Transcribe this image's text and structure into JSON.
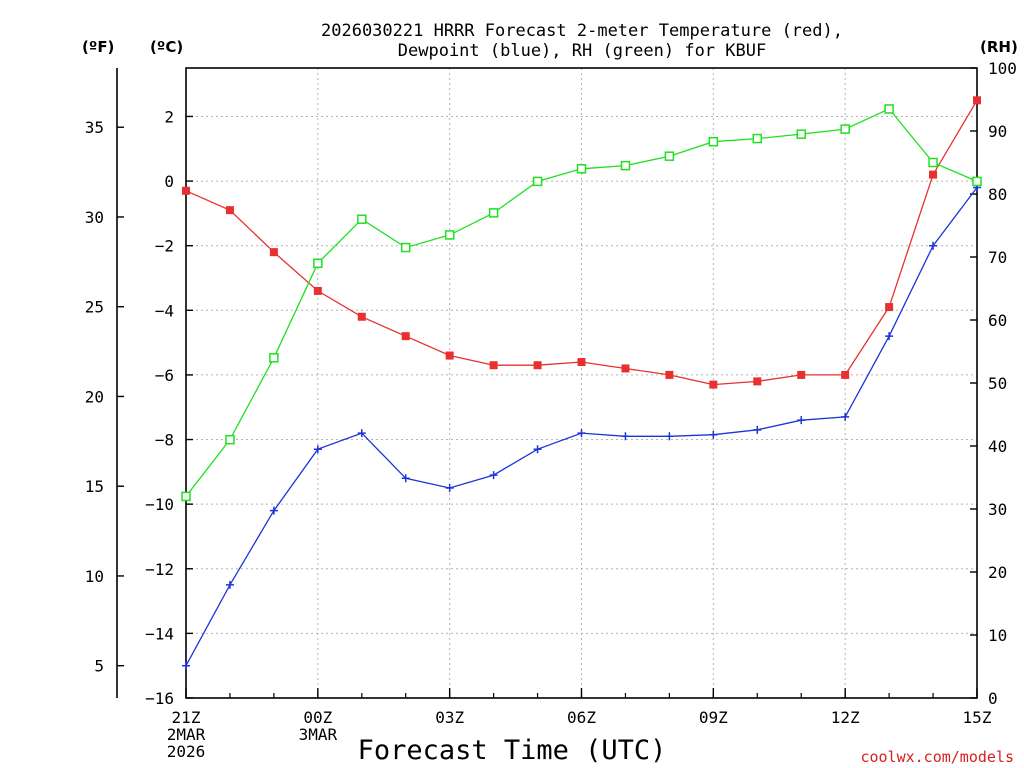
{
  "chart_data": {
    "type": "line",
    "title": [
      "2026030221 HRRR Forecast 2-meter Temperature (red),",
      "Dewpoint (blue), RH (green) for KBUF"
    ],
    "xlabel": "Forecast Time (UTC)",
    "unit_labels": {
      "fahrenheit": "(ºF)",
      "celsius": "(ºC)",
      "rh": "(RH)"
    },
    "x_hours": [
      0,
      1,
      2,
      3,
      4,
      5,
      6,
      7,
      8,
      9,
      10,
      11,
      12,
      13,
      14,
      15,
      16,
      17,
      18
    ],
    "x_ticks": [
      {
        "hour": 0,
        "lines": [
          "21Z",
          "2MAR",
          "2026"
        ]
      },
      {
        "hour": 3,
        "lines": [
          "00Z",
          "3MAR"
        ]
      },
      {
        "hour": 6,
        "lines": [
          "03Z"
        ]
      },
      {
        "hour": 9,
        "lines": [
          "06Z"
        ]
      },
      {
        "hour": 12,
        "lines": [
          "09Z"
        ]
      },
      {
        "hour": 15,
        "lines": [
          "12Z"
        ]
      },
      {
        "hour": 18,
        "lines": [
          "15Z"
        ]
      }
    ],
    "y_celsius": {
      "range": [
        -16,
        3.5
      ],
      "ticks": [
        -16,
        -14,
        -12,
        -10,
        -8,
        -6,
        -4,
        -2,
        0,
        2
      ]
    },
    "y_fahrenheit": {
      "range": [
        3.2,
        38.3
      ],
      "ticks": [
        5,
        10,
        15,
        20,
        25,
        30,
        35
      ]
    },
    "y_rh": {
      "range": [
        0,
        100
      ],
      "ticks": [
        0,
        10,
        20,
        30,
        40,
        50,
        60,
        70,
        80,
        90,
        100
      ]
    },
    "series": [
      {
        "name": "Temperature",
        "axis": "celsius",
        "color": "#e83030",
        "marker": "filled-square",
        "values": [
          -0.3,
          -0.9,
          -2.2,
          -3.4,
          -4.2,
          -4.8,
          -5.4,
          -5.7,
          -5.7,
          -5.6,
          -5.8,
          -6.0,
          -6.3,
          -6.2,
          -6.0,
          -6.0,
          -3.9,
          0.2,
          2.5
        ]
      },
      {
        "name": "Dewpoint",
        "axis": "celsius",
        "color": "#1a35d8",
        "marker": "plus",
        "values": [
          -15.0,
          -12.5,
          -10.2,
          -8.3,
          -7.8,
          -9.2,
          -9.5,
          -9.1,
          -8.3,
          -7.8,
          -7.9,
          -7.9,
          -7.85,
          -7.7,
          -7.4,
          -7.3,
          -4.8,
          -2.0,
          -0.2
        ]
      },
      {
        "name": "RH",
        "axis": "rh",
        "color": "#20e020",
        "marker": "open-square",
        "values": [
          32,
          41,
          54,
          69,
          76,
          71.5,
          73.5,
          77,
          82,
          84,
          84.5,
          86,
          88.3,
          88.8,
          89.5,
          90.3,
          93.5,
          85,
          82
        ]
      }
    ]
  },
  "credit": "coolwx.com/models"
}
